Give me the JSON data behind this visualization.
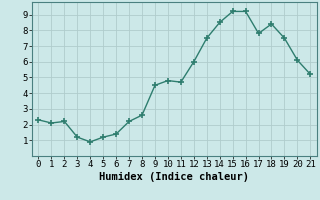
{
  "x": [
    0,
    1,
    2,
    3,
    4,
    5,
    6,
    7,
    8,
    9,
    10,
    11,
    12,
    13,
    14,
    15,
    16,
    17,
    18,
    19,
    20,
    21
  ],
  "y": [
    2.3,
    2.1,
    2.2,
    1.2,
    0.9,
    1.2,
    1.4,
    2.2,
    2.6,
    4.5,
    4.8,
    4.7,
    6.0,
    7.5,
    8.5,
    9.2,
    9.2,
    7.8,
    8.4,
    7.5,
    6.1,
    5.2
  ],
  "line_color": "#2e7d6e",
  "marker": "+",
  "marker_size": 4,
  "marker_lw": 1.2,
  "bg_color": "#cce8e8",
  "grid_color": "#b0cccc",
  "xlabel": "Humidex (Indice chaleur)",
  "ylim": [
    0,
    9.8
  ],
  "xlim": [
    -0.5,
    21.5
  ],
  "yticks": [
    1,
    2,
    3,
    4,
    5,
    6,
    7,
    8,
    9
  ],
  "xticks": [
    0,
    1,
    2,
    3,
    4,
    5,
    6,
    7,
    8,
    9,
    10,
    11,
    12,
    13,
    14,
    15,
    16,
    17,
    18,
    19,
    20,
    21
  ],
  "tick_fontsize": 6.5,
  "xlabel_fontsize": 7.5,
  "xlabel_fontweight": "bold",
  "linewidth": 1.0
}
